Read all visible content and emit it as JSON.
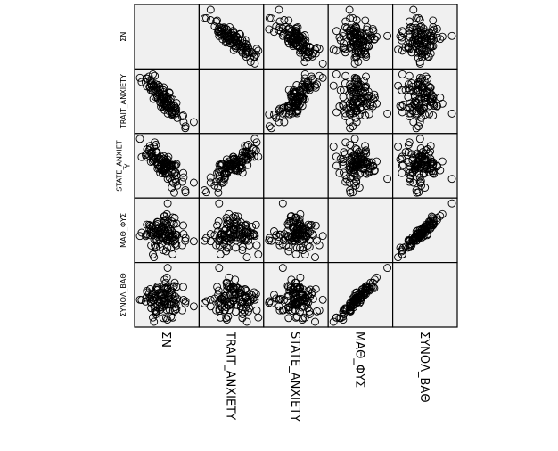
{
  "chart_data": {
    "type": "scatter",
    "title": "",
    "matrix": true,
    "variables": [
      "ΣΝ",
      "TRAIT_ANXIETY",
      "STATE_ANXIETY",
      "ΜΑΘ_ΦΥΣ",
      "ΣΥΝΟΛ_ΒΑΘ"
    ],
    "row_labels": [
      "ΣΝ",
      "TRAIT_ANXIETY",
      "STATE_ANXIET\nY",
      "ΜΑΘ_ΦΥΣ",
      "ΣΥΝΟΛ_ΒΑΘ"
    ],
    "column_labels": [
      "ΣΝ",
      "TRAIT_ANXIETY",
      "STATE_ANXIETY",
      "ΜΑΘ_ΦΥΣ",
      "ΣΥΝΟΛ_ΒΑΘ"
    ],
    "diagonal": "empty",
    "grid": false,
    "marker": "open-circle",
    "colors": {
      "panel_background": "#f0f0f0",
      "marker_stroke": "#000000",
      "frame": "#000000"
    },
    "n_points": 110
  }
}
